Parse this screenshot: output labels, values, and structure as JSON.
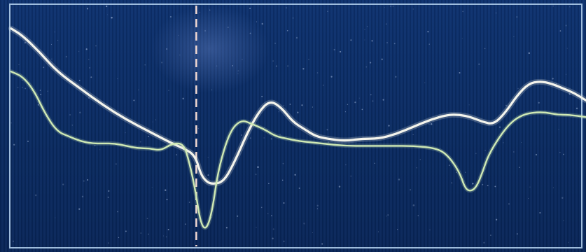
{
  "chart_data": {
    "type": "line",
    "title": "",
    "xlabel": "",
    "ylabel": "",
    "xlim": [
      0,
      100
    ],
    "ylim": [
      0,
      100
    ],
    "grid": false,
    "legend": "none",
    "cursor_x": 32.2,
    "series": [
      {
        "color": "#f4f4ec",
        "x": [
          0,
          2,
          5,
          8,
          12,
          16,
          20,
          24,
          28,
          30,
          32,
          33,
          34,
          35,
          37,
          39,
          41,
          43,
          45,
          47,
          49,
          51,
          53,
          55,
          58,
          61,
          64,
          67,
          70,
          73,
          76,
          78,
          80,
          82,
          84,
          86,
          88,
          90,
          92,
          94,
          96,
          98,
          100
        ],
        "y": [
          91,
          88,
          81,
          73,
          66,
          59,
          53,
          48,
          43,
          41,
          38,
          30,
          27,
          26,
          27,
          36,
          47,
          56,
          61,
          58,
          52,
          49,
          46,
          45,
          44,
          45,
          45,
          47,
          50,
          53,
          55,
          55,
          54,
          52,
          51,
          56,
          63,
          68,
          69,
          68,
          66,
          64,
          61
        ]
      },
      {
        "color": "#cfe9b4",
        "x": [
          0,
          2,
          4,
          6,
          8,
          10,
          12,
          14,
          16,
          18,
          20,
          22,
          24,
          26,
          28,
          30,
          31,
          32,
          33,
          34,
          35,
          36,
          38,
          40,
          42,
          44,
          46,
          48,
          50,
          54,
          58,
          62,
          66,
          70,
          74,
          76,
          78,
          79,
          80,
          81,
          82,
          83,
          85,
          87,
          89,
          91,
          93,
          95,
          97,
          100
        ],
        "y": [
          73,
          71,
          65,
          55,
          48,
          46,
          44,
          43,
          43,
          43,
          42,
          41,
          41,
          40,
          43,
          43,
          35,
          24,
          9,
          7,
          15,
          32,
          48,
          53,
          51,
          49,
          46,
          45,
          44,
          43,
          42,
          42,
          42,
          42,
          41,
          38,
          31,
          24,
          23,
          25,
          31,
          38,
          46,
          52,
          55,
          56,
          56,
          55,
          55,
          54
        ]
      }
    ]
  }
}
